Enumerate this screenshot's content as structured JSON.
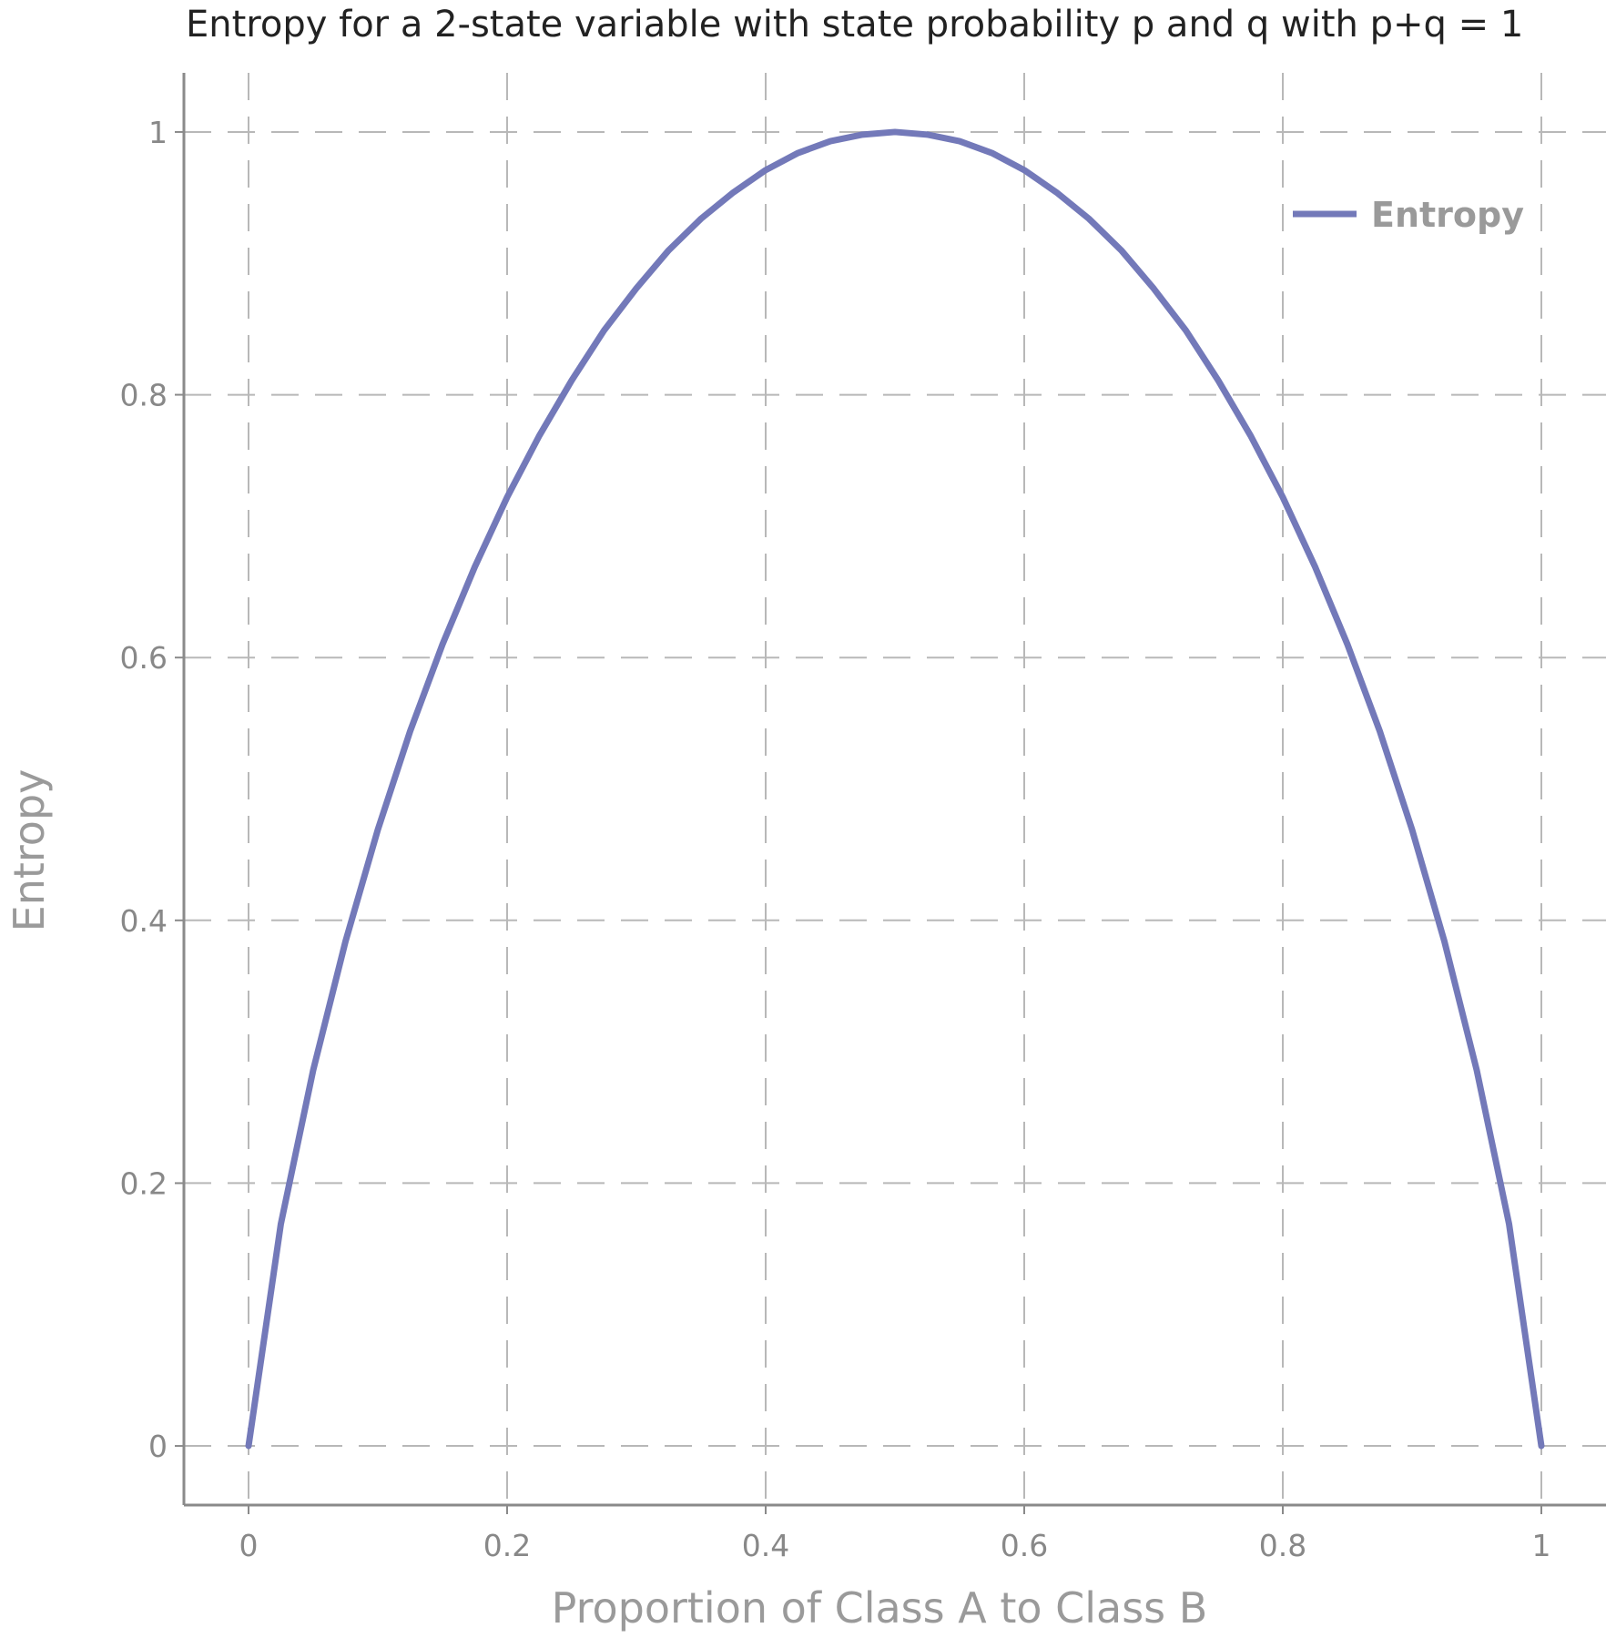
{
  "chart_data": {
    "type": "line",
    "title": "Entropy for a 2-state variable with state probability p and q with p+q = 1",
    "xlabel": "Proportion of Class A to Class B",
    "ylabel": "Entropy",
    "xlim": [
      -0.05,
      1.05
    ],
    "ylim": [
      -0.045,
      1.045
    ],
    "x_ticks": [
      0,
      0.2,
      0.4,
      0.6,
      0.8,
      1
    ],
    "x_tick_labels": [
      "0",
      "0.2",
      "0.4",
      "0.6",
      "0.8",
      "1"
    ],
    "y_ticks": [
      0,
      0.2,
      0.4,
      0.6,
      0.8,
      1
    ],
    "y_tick_labels": [
      "0",
      "0.2",
      "0.4",
      "0.6",
      "0.8",
      "1"
    ],
    "grid": true,
    "legend_position": "top-right",
    "series": [
      {
        "name": "Entropy",
        "color": "#7379b9",
        "x": [
          0,
          0.025,
          0.05,
          0.075,
          0.1,
          0.125,
          0.15,
          0.175,
          0.2,
          0.225,
          0.25,
          0.275,
          0.3,
          0.325,
          0.35,
          0.375,
          0.4,
          0.425,
          0.45,
          0.475,
          0.5,
          0.525,
          0.55,
          0.575,
          0.6,
          0.625,
          0.65,
          0.675,
          0.7,
          0.725,
          0.75,
          0.775,
          0.8,
          0.825,
          0.85,
          0.875,
          0.9,
          0.925,
          0.95,
          0.975,
          1
        ],
        "y": [
          0,
          0.169,
          0.286,
          0.384,
          0.469,
          0.544,
          0.61,
          0.669,
          0.722,
          0.769,
          0.811,
          0.849,
          0.881,
          0.91,
          0.934,
          0.954,
          0.971,
          0.984,
          0.993,
          0.998,
          1,
          0.998,
          0.993,
          0.984,
          0.971,
          0.954,
          0.934,
          0.91,
          0.881,
          0.849,
          0.811,
          0.769,
          0.722,
          0.669,
          0.61,
          0.544,
          0.469,
          0.384,
          0.286,
          0.169,
          0
        ]
      }
    ]
  }
}
